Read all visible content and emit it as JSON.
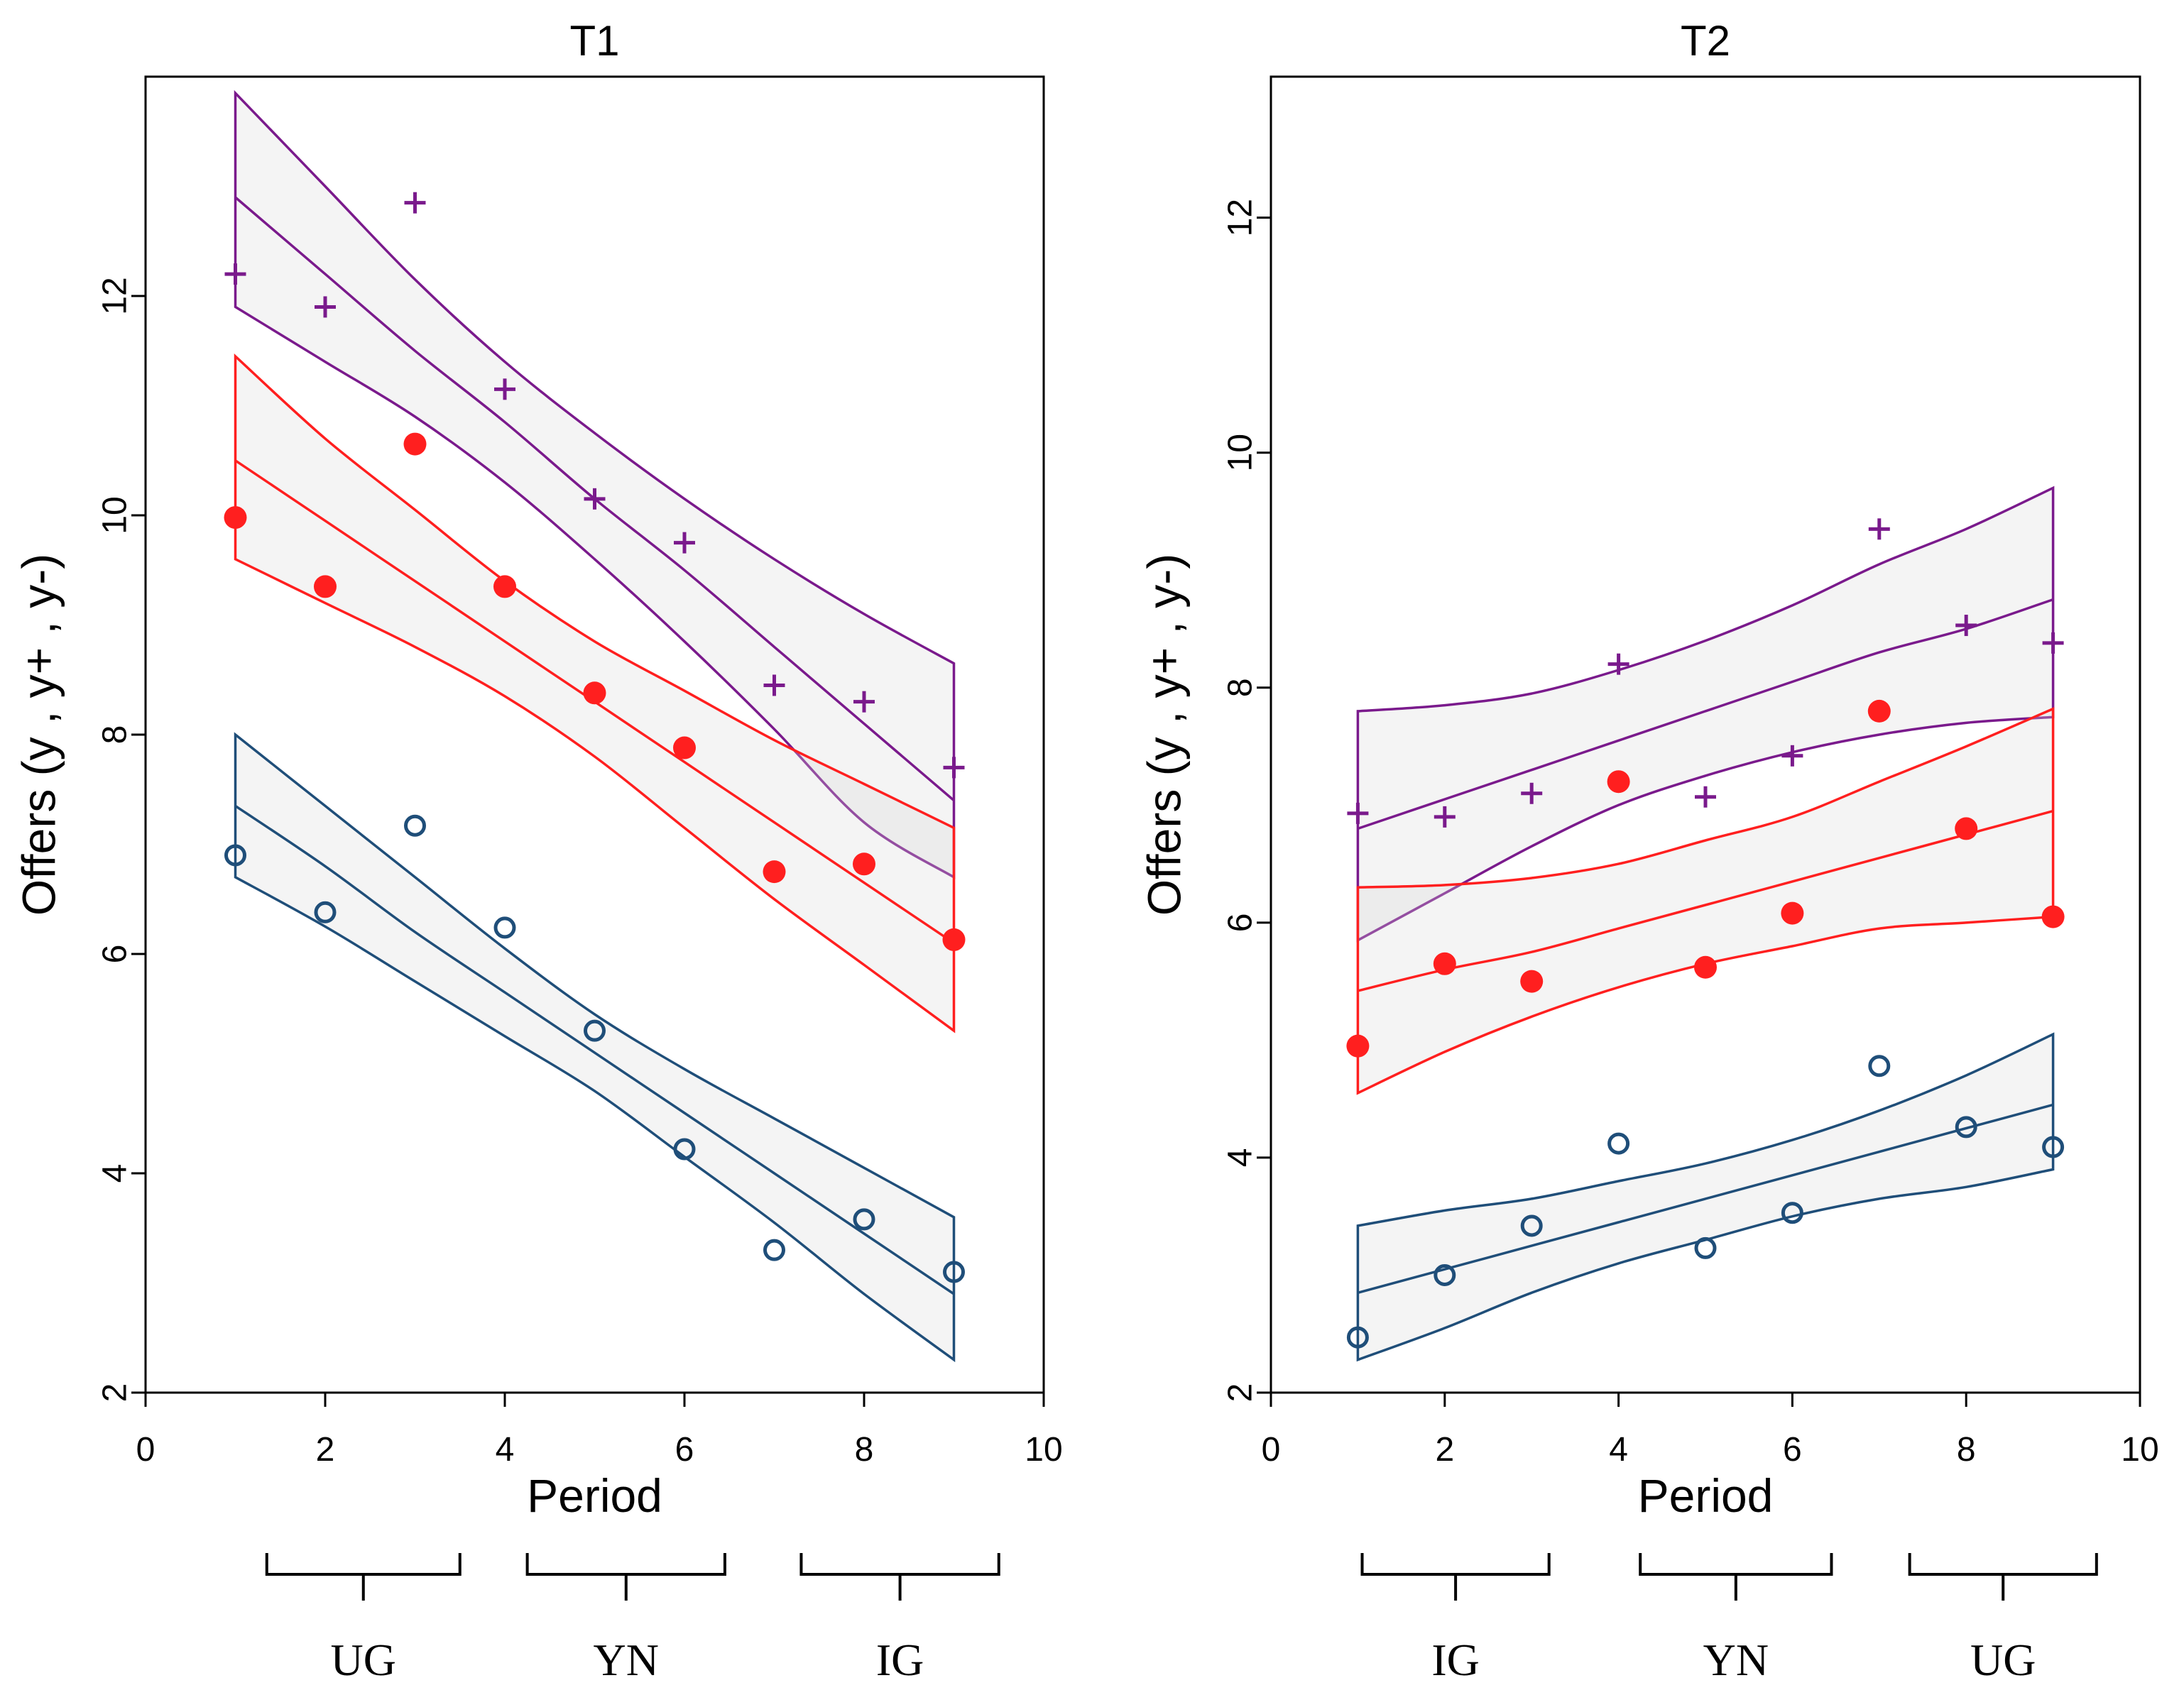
{
  "chart_data": [
    {
      "type": "scatter",
      "title": "T1",
      "xlabel": "Period",
      "ylabel": "Offers (y , y+ , y-)",
      "xlim": [
        0,
        10
      ],
      "ylim": [
        2,
        14
      ],
      "xticks": [
        0,
        2,
        4,
        6,
        8,
        10
      ],
      "yticks": [
        2,
        4,
        6,
        8,
        10,
        12
      ],
      "x": [
        1,
        2,
        3,
        4,
        5,
        6,
        7,
        8,
        9
      ],
      "series": [
        {
          "name": "y+",
          "marker": "plus",
          "color": "#7a1a8c",
          "values": [
            12.2,
            11.9,
            12.85,
            11.15,
            10.15,
            9.75,
            8.45,
            8.3,
            7.7
          ],
          "fit": [
            12.9,
            12.2,
            11.5,
            10.85,
            10.15,
            9.5,
            8.8,
            8.1,
            7.4
          ],
          "upper": [
            13.85,
            13.0,
            12.15,
            11.4,
            10.75,
            10.15,
            9.6,
            9.1,
            8.65
          ],
          "lower": [
            11.9,
            11.4,
            10.9,
            10.3,
            9.6,
            8.85,
            8.05,
            7.2,
            6.7
          ]
        },
        {
          "name": "y",
          "marker": "filled-circle",
          "color": "#ff1f1f",
          "values": [
            9.98,
            9.35,
            10.65,
            9.35,
            8.38,
            7.88,
            6.75,
            6.82,
            6.13
          ],
          "fit": [
            10.5,
            9.95,
            9.4,
            8.85,
            8.3,
            7.75,
            7.2,
            6.65,
            6.1
          ],
          "upper": [
            11.45,
            10.7,
            10.05,
            9.4,
            8.85,
            8.4,
            7.95,
            7.55,
            7.15
          ],
          "lower": [
            9.6,
            9.2,
            8.8,
            8.35,
            7.8,
            7.15,
            6.5,
            5.9,
            5.3
          ]
        },
        {
          "name": "y-",
          "marker": "hollow-circle",
          "color": "#1f4e79",
          "values": [
            6.9,
            6.38,
            7.17,
            6.24,
            5.3,
            4.22,
            3.3,
            3.58,
            3.1
          ],
          "fit": [
            7.35,
            6.8,
            6.2,
            5.65,
            5.1,
            4.55,
            4.0,
            3.45,
            2.9
          ],
          "upper": [
            8.0,
            7.35,
            6.7,
            6.05,
            5.45,
            4.95,
            4.5,
            4.05,
            3.6
          ],
          "lower": [
            6.7,
            6.25,
            5.75,
            5.25,
            4.75,
            4.15,
            3.55,
            2.9,
            2.3
          ]
        }
      ],
      "phases": [
        {
          "label": "UG",
          "from": 1.35,
          "to": 3.5
        },
        {
          "label": "YN",
          "from": 4.25,
          "to": 6.45
        },
        {
          "label": "IG",
          "from": 7.3,
          "to": 9.5
        }
      ]
    },
    {
      "type": "scatter",
      "title": "T2",
      "xlabel": "Period",
      "ylabel": "Offers (y , y+ , y-)",
      "xlim": [
        0,
        10
      ],
      "ylim": [
        2,
        13.2
      ],
      "xticks": [
        0,
        2,
        4,
        6,
        8,
        10
      ],
      "yticks": [
        2,
        4,
        6,
        8,
        10,
        12
      ],
      "x": [
        1,
        2,
        3,
        4,
        5,
        6,
        7,
        8,
        9
      ],
      "series": [
        {
          "name": "y+",
          "marker": "plus",
          "color": "#7a1a8c",
          "values": [
            6.93,
            6.9,
            7.1,
            8.2,
            7.07,
            7.42,
            9.35,
            8.53,
            8.38
          ],
          "fit": [
            6.8,
            7.05,
            7.3,
            7.55,
            7.8,
            8.05,
            8.3,
            8.5,
            8.75
          ],
          "upper": [
            7.8,
            7.85,
            7.95,
            8.15,
            8.4,
            8.7,
            9.05,
            9.35,
            9.7
          ],
          "lower": [
            5.85,
            6.25,
            6.65,
            7.0,
            7.25,
            7.45,
            7.6,
            7.7,
            7.75
          ]
        },
        {
          "name": "y",
          "marker": "filled-circle",
          "color": "#ff1f1f",
          "values": [
            4.95,
            5.65,
            5.5,
            7.2,
            5.62,
            6.08,
            7.8,
            6.8,
            6.05
          ],
          "fit": [
            5.42,
            5.6,
            5.75,
            5.95,
            6.15,
            6.35,
            6.55,
            6.75,
            6.95
          ],
          "upper": [
            6.3,
            6.32,
            6.38,
            6.5,
            6.7,
            6.9,
            7.2,
            7.5,
            7.82
          ],
          "lower": [
            4.55,
            4.9,
            5.2,
            5.45,
            5.65,
            5.8,
            5.95,
            6.0,
            6.05
          ]
        },
        {
          "name": "y-",
          "marker": "hollow-circle",
          "color": "#1f4e79",
          "values": [
            2.47,
            3.0,
            3.42,
            4.12,
            3.23,
            3.53,
            4.78,
            4.26,
            4.09
          ],
          "fit": [
            2.85,
            3.05,
            3.25,
            3.45,
            3.65,
            3.85,
            4.05,
            4.25,
            4.45
          ],
          "upper": [
            3.42,
            3.55,
            3.65,
            3.8,
            3.95,
            4.15,
            4.4,
            4.7,
            5.05
          ],
          "lower": [
            2.28,
            2.55,
            2.85,
            3.1,
            3.3,
            3.5,
            3.65,
            3.75,
            3.9
          ]
        }
      ],
      "phases": [
        {
          "label": "IG",
          "from": 1.05,
          "to": 3.2
        },
        {
          "label": "YN",
          "from": 4.25,
          "to": 6.45
        },
        {
          "label": "UG",
          "from": 7.35,
          "to": 9.5
        }
      ]
    }
  ]
}
